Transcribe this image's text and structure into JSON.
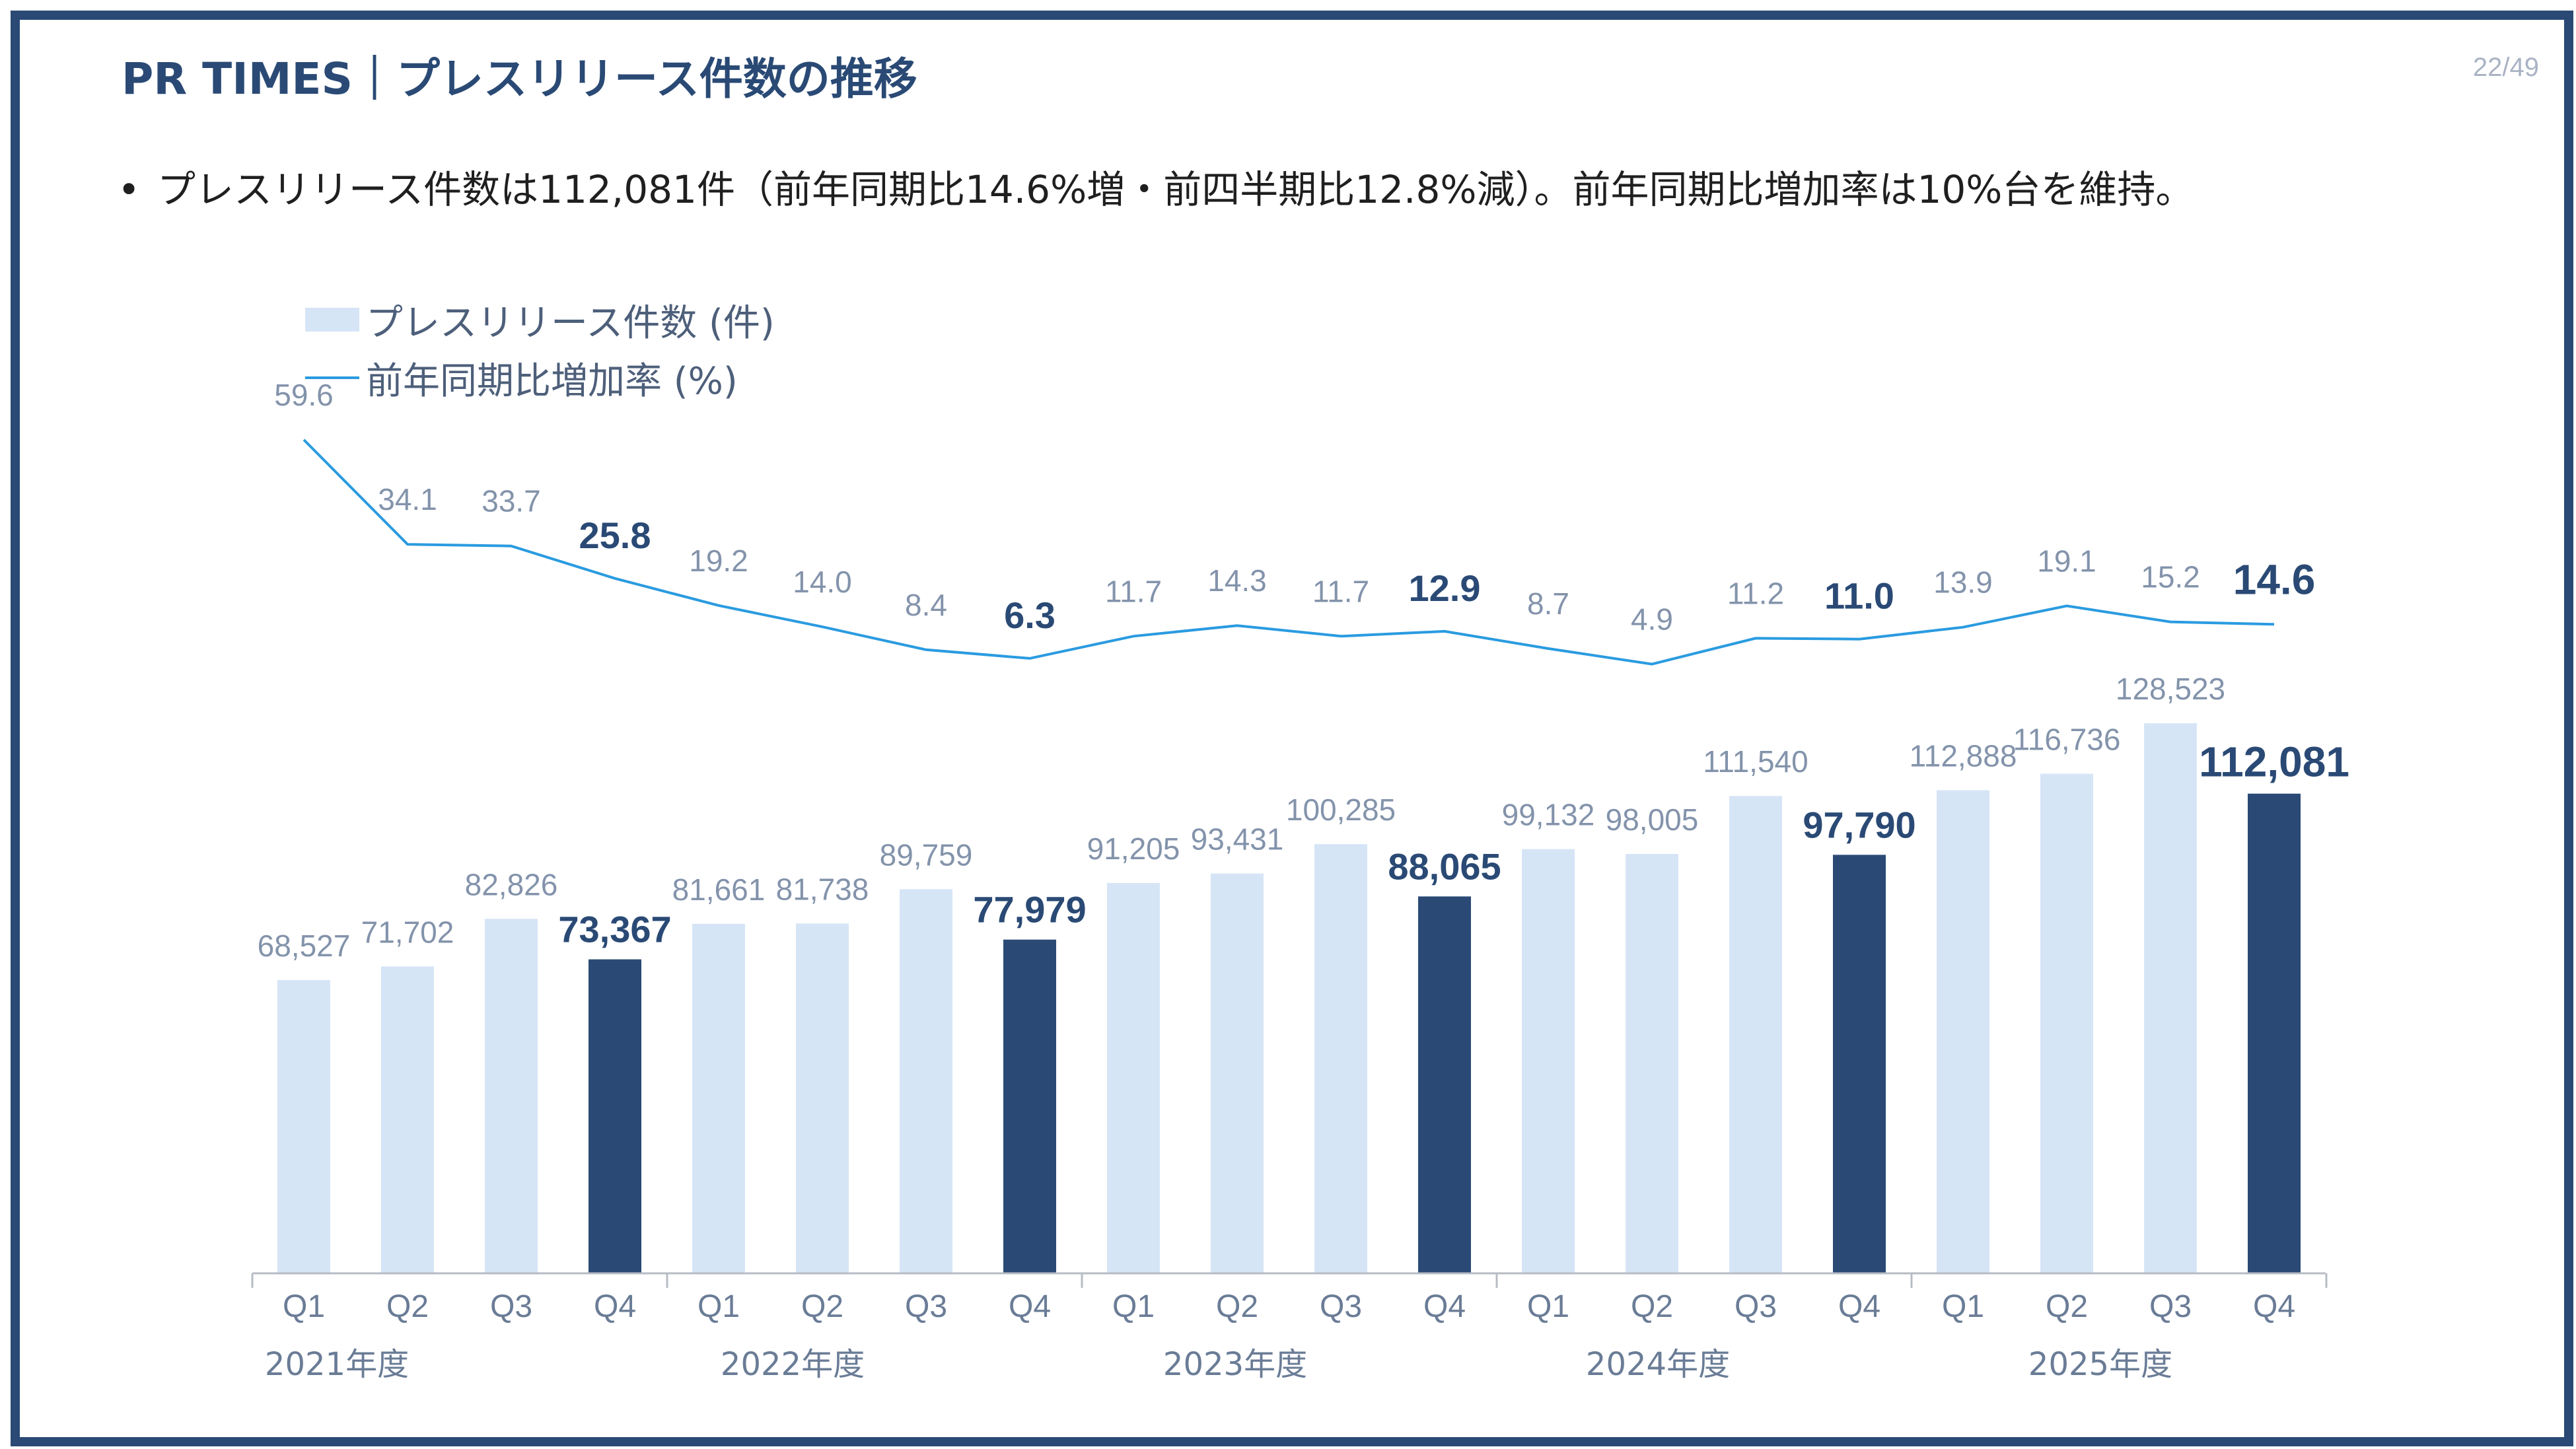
{
  "header": {
    "title": "PR TIMES｜プレスリリース件数の推移",
    "page_number": "22/49"
  },
  "summary": {
    "bullet": "•",
    "text": "プレスリリース件数は112,081件（前年同期比14.6%増・前四半期比12.8%減）。前年同期比増加率は10%台を維持。"
  },
  "colors": {
    "frame": "#2a4a75",
    "bar_light": "#d6e5f6",
    "bar_dark": "#2a4a75",
    "line": "#2a9be0",
    "label_light": "#8393ab",
    "label_dark": "#2a4a75",
    "axis_text": "#6a7c96"
  },
  "chart_data": {
    "type": "bar",
    "legend": [
      {
        "label": "プレスリリース件数 (件)",
        "kind": "bar"
      },
      {
        "label": "前年同期比増加率 (%)",
        "kind": "line"
      }
    ],
    "legend_position": "top-left",
    "grid": false,
    "quarters": [
      "Q1",
      "Q2",
      "Q3",
      "Q4",
      "Q1",
      "Q2",
      "Q3",
      "Q4",
      "Q1",
      "Q2",
      "Q3",
      "Q4",
      "Q1",
      "Q2",
      "Q3",
      "Q4",
      "Q1",
      "Q2",
      "Q3",
      "Q4"
    ],
    "years": [
      "2021年度",
      "2022年度",
      "2023年度",
      "2024年度",
      "2025年度"
    ],
    "series": [
      {
        "name": "プレスリリース件数 (件)",
        "type": "bar",
        "values": [
          68527,
          71702,
          82826,
          73367,
          81661,
          81738,
          89759,
          77979,
          91205,
          93431,
          100285,
          88065,
          99132,
          98005,
          111540,
          97790,
          112888,
          116736,
          128523,
          112081
        ],
        "labels": [
          "68,527",
          "71,702",
          "82,826",
          "73,367",
          "81,661",
          "81,738",
          "89,759",
          "77,979",
          "91,205",
          "93,431",
          "100,285",
          "88,065",
          "99,132",
          "98,005",
          "111,540",
          "97,790",
          "112,888",
          "116,736",
          "128,523",
          "112,081"
        ]
      },
      {
        "name": "前年同期比増加率 (%)",
        "type": "line",
        "values": [
          59.6,
          34.1,
          33.7,
          25.8,
          19.2,
          14.0,
          8.4,
          6.3,
          11.7,
          14.3,
          11.7,
          12.9,
          8.7,
          4.9,
          11.2,
          11.0,
          13.9,
          19.1,
          15.2,
          14.6
        ],
        "labels": [
          "59.6",
          "34.1",
          "33.7",
          "25.8",
          "19.2",
          "14.0",
          "8.4",
          "6.3",
          "11.7",
          "14.3",
          "11.7",
          "12.9",
          "8.7",
          "4.9",
          "11.2",
          "11.0",
          "13.9",
          "19.1",
          "15.2",
          "14.6"
        ]
      }
    ],
    "highlighted_quarter": "Q4"
  }
}
